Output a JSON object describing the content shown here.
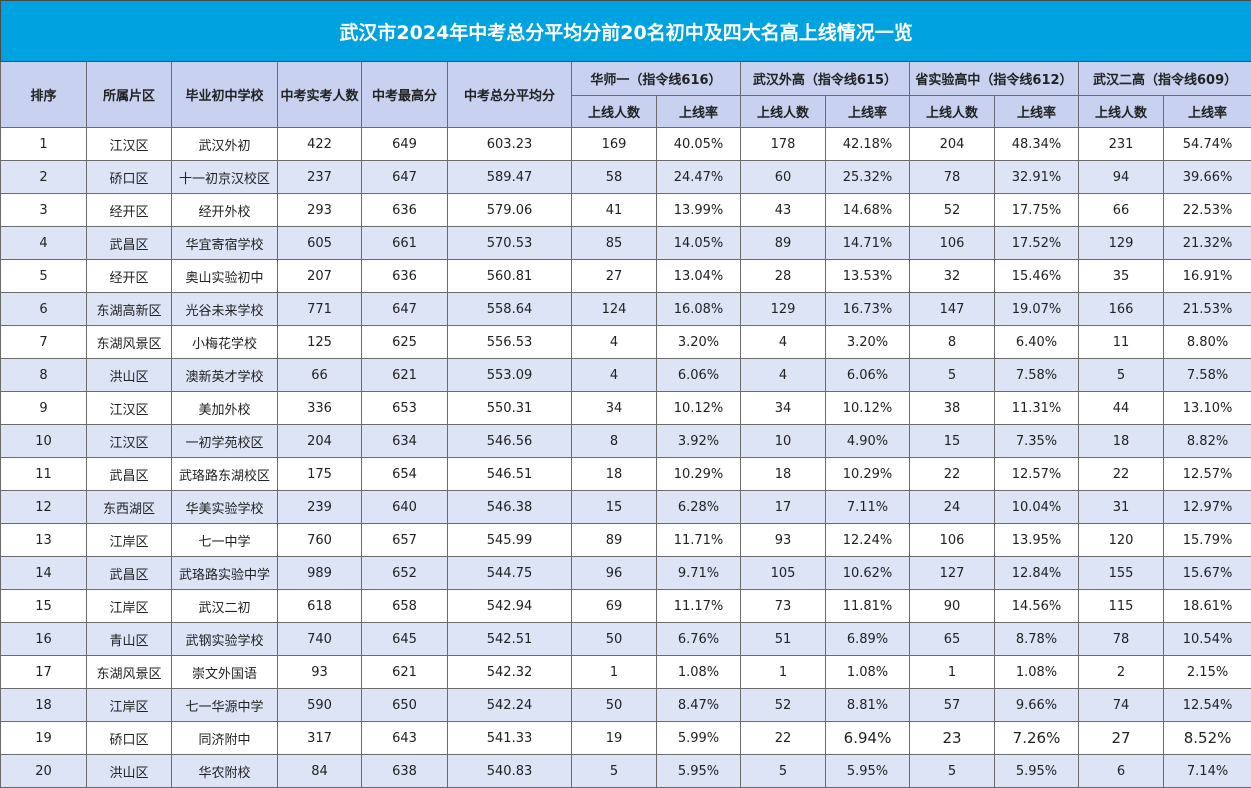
{
  "title": "武汉市2024年中考总分平均分前20名初中及四大名高上线情况一览",
  "headers": {
    "rank": "排序",
    "district": "所属片区",
    "school": "毕业初中学校",
    "count": "中考实考人数",
    "max": "中考最高分",
    "avg": "中考总分平均分",
    "groups": [
      "华师一（指令线616）",
      "武汉外高（指令线615）",
      "省实验高中（指令线612）",
      "武汉二高（指令线609）"
    ],
    "sub_count": "上线人数",
    "sub_rate": "上线率"
  },
  "rows": [
    [
      "1",
      "江汉区",
      "武汉外初",
      "422",
      "649",
      "603.23",
      "169",
      "40.05%",
      "178",
      "42.18%",
      "204",
      "48.34%",
      "231",
      "54.74%"
    ],
    [
      "2",
      "硚口区",
      "十一初京汉校区",
      "237",
      "647",
      "589.47",
      "58",
      "24.47%",
      "60",
      "25.32%",
      "78",
      "32.91%",
      "94",
      "39.66%"
    ],
    [
      "3",
      "经开区",
      "经开外校",
      "293",
      "636",
      "579.06",
      "41",
      "13.99%",
      "43",
      "14.68%",
      "52",
      "17.75%",
      "66",
      "22.53%"
    ],
    [
      "4",
      "武昌区",
      "华宜寄宿学校",
      "605",
      "661",
      "570.53",
      "85",
      "14.05%",
      "89",
      "14.71%",
      "106",
      "17.52%",
      "129",
      "21.32%"
    ],
    [
      "5",
      "经开区",
      "奥山实验初中",
      "207",
      "636",
      "560.81",
      "27",
      "13.04%",
      "28",
      "13.53%",
      "32",
      "15.46%",
      "35",
      "16.91%"
    ],
    [
      "6",
      "东湖高新区",
      "光谷未来学校",
      "771",
      "647",
      "558.64",
      "124",
      "16.08%",
      "129",
      "16.73%",
      "147",
      "19.07%",
      "166",
      "21.53%"
    ],
    [
      "7",
      "东湖风景区",
      "小梅花学校",
      "125",
      "625",
      "556.53",
      "4",
      "3.20%",
      "4",
      "3.20%",
      "8",
      "6.40%",
      "11",
      "8.80%"
    ],
    [
      "8",
      "洪山区",
      "澳新英才学校",
      "66",
      "621",
      "553.09",
      "4",
      "6.06%",
      "4",
      "6.06%",
      "5",
      "7.58%",
      "5",
      "7.58%"
    ],
    [
      "9",
      "江汉区",
      "美加外校",
      "336",
      "653",
      "550.31",
      "34",
      "10.12%",
      "34",
      "10.12%",
      "38",
      "11.31%",
      "44",
      "13.10%"
    ],
    [
      "10",
      "江汉区",
      "一初学苑校区",
      "204",
      "634",
      "546.56",
      "8",
      "3.92%",
      "10",
      "4.90%",
      "15",
      "7.35%",
      "18",
      "8.82%"
    ],
    [
      "11",
      "武昌区",
      "武珞路东湖校区",
      "175",
      "654",
      "546.51",
      "18",
      "10.29%",
      "18",
      "10.29%",
      "22",
      "12.57%",
      "22",
      "12.57%"
    ],
    [
      "12",
      "东西湖区",
      "华美实验学校",
      "239",
      "640",
      "546.38",
      "15",
      "6.28%",
      "17",
      "7.11%",
      "24",
      "10.04%",
      "31",
      "12.97%"
    ],
    [
      "13",
      "江岸区",
      "七一中学",
      "760",
      "657",
      "545.99",
      "89",
      "11.71%",
      "93",
      "12.24%",
      "106",
      "13.95%",
      "120",
      "15.79%"
    ],
    [
      "14",
      "武昌区",
      "武珞路实验中学",
      "989",
      "652",
      "544.75",
      "96",
      "9.71%",
      "105",
      "10.62%",
      "127",
      "12.84%",
      "155",
      "15.67%"
    ],
    [
      "15",
      "江岸区",
      "武汉二初",
      "618",
      "658",
      "542.94",
      "69",
      "11.17%",
      "73",
      "11.81%",
      "90",
      "14.56%",
      "115",
      "18.61%"
    ],
    [
      "16",
      "青山区",
      "武钢实验学校",
      "740",
      "645",
      "542.51",
      "50",
      "6.76%",
      "51",
      "6.89%",
      "65",
      "8.78%",
      "78",
      "10.54%"
    ],
    [
      "17",
      "东湖风景区",
      "崇文外国语",
      "93",
      "621",
      "542.32",
      "1",
      "1.08%",
      "1",
      "1.08%",
      "1",
      "1.08%",
      "2",
      "2.15%"
    ],
    [
      "18",
      "江岸区",
      "七一华源中学",
      "590",
      "650",
      "542.24",
      "50",
      "8.47%",
      "52",
      "8.81%",
      "57",
      "9.66%",
      "74",
      "12.54%"
    ],
    [
      "19",
      "硚口区",
      "同济附中",
      "317",
      "643",
      "541.33",
      "19",
      "5.99%",
      "22",
      "6.94%",
      "23",
      "7.26%",
      "27",
      "8.52%"
    ],
    [
      "20",
      "洪山区",
      "华农附校",
      "84",
      "638",
      "540.83",
      "5",
      "5.95%",
      "5",
      "5.95%",
      "5",
      "5.95%",
      "6",
      "7.14%"
    ]
  ]
}
